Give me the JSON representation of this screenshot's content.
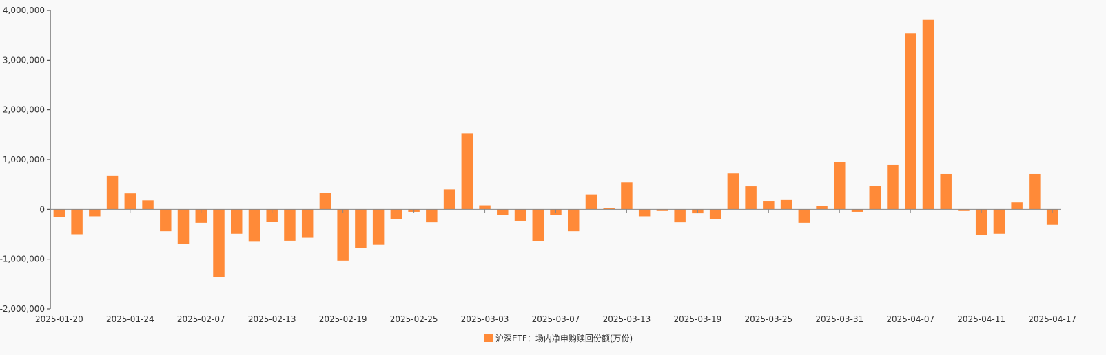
{
  "chart_data": {
    "type": "bar",
    "title": "",
    "xlabel": "",
    "ylabel": "",
    "ylim": [
      -2000000,
      4000000
    ],
    "yticks": [
      4000000,
      3000000,
      2000000,
      1000000,
      0,
      -1000000,
      -2000000
    ],
    "ytick_labels": [
      "4,000,000",
      "3,000,000",
      "2,000,000",
      "1,000,000",
      "0",
      "-1,000,000",
      "-2,000,000"
    ],
    "xtick_labels": [
      "2025-01-20",
      "2025-01-24",
      "2025-02-07",
      "2025-02-13",
      "2025-02-19",
      "2025-02-25",
      "2025-03-03",
      "2025-03-07",
      "2025-03-13",
      "2025-03-19",
      "2025-03-25",
      "2025-03-31",
      "2025-04-07",
      "2025-04-11",
      "2025-04-17"
    ],
    "xtick_label_indices": [
      0,
      4,
      8,
      12,
      16,
      20,
      24,
      28,
      32,
      36,
      40,
      44,
      48,
      52,
      56
    ],
    "grid": false,
    "legend_position": "bottom-center",
    "color": "#ff8a38",
    "series": [
      {
        "name": "沪深ETF：场内净申购赎回份额(万份)",
        "values": [
          -150000,
          -500000,
          -140000,
          670000,
          320000,
          180000,
          -440000,
          -690000,
          -270000,
          -1360000,
          -490000,
          -650000,
          -250000,
          -630000,
          -570000,
          330000,
          -1030000,
          -770000,
          -710000,
          -190000,
          -50000,
          -260000,
          400000,
          1520000,
          80000,
          -110000,
          -230000,
          -640000,
          -110000,
          -440000,
          300000,
          20000,
          540000,
          -140000,
          -20000,
          -260000,
          -80000,
          -200000,
          720000,
          460000,
          170000,
          200000,
          -270000,
          60000,
          950000,
          -50000,
          470000,
          890000,
          3540000,
          3810000,
          710000,
          -20000,
          -510000,
          -490000,
          140000,
          710000,
          -310000
        ]
      }
    ]
  }
}
